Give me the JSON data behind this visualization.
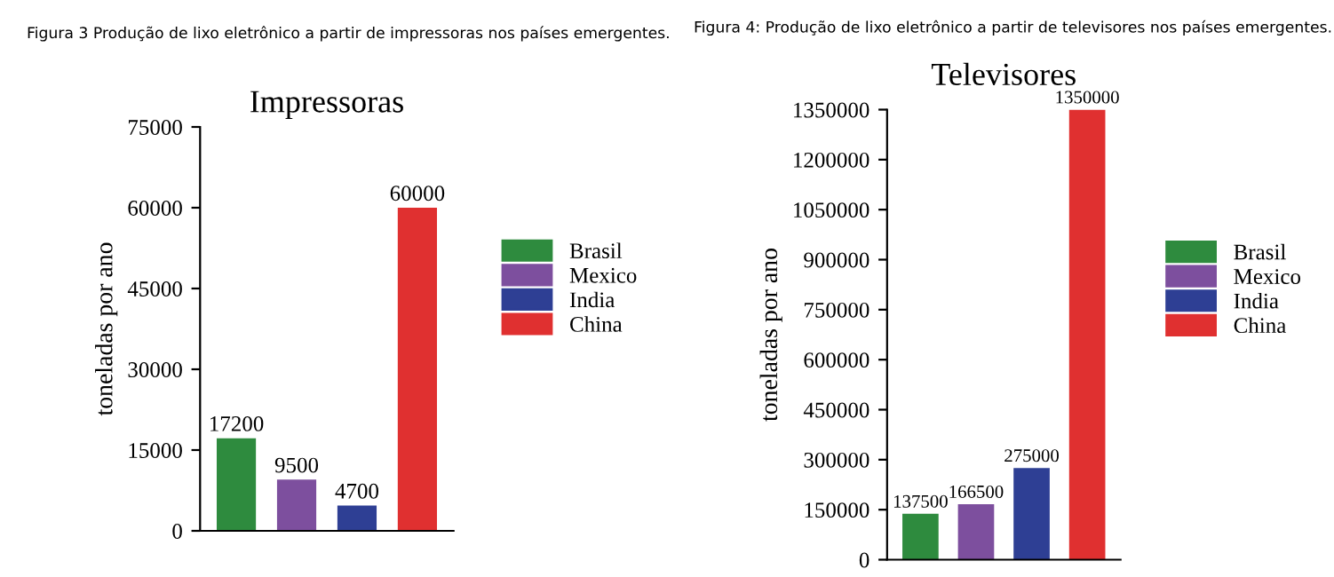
{
  "chart_data": [
    {
      "type": "bar",
      "annotations": [
        "Figura 3 Produção de lixo eletrônico a partir de impressoras nos países emergentes."
      ],
      "title": "Impressoras",
      "ylabel": "toneladas por ano",
      "categories": [
        null,
        null,
        null,
        null
      ],
      "series": [
        {
          "name": "Brasil",
          "color": "#2e8b3e",
          "values": [
            17200,
            null,
            null,
            null
          ]
        },
        {
          "name": "Mexico",
          "color": "#7d4f9e",
          "values": [
            null,
            9500,
            null,
            null
          ]
        },
        {
          "name": "India",
          "color": "#2e3f94",
          "values": [
            null,
            null,
            4700,
            null
          ]
        },
        {
          "name": "China",
          "color": "#e03030",
          "values": [
            null,
            null,
            null,
            60000
          ]
        }
      ],
      "ylim": [
        0,
        75000
      ],
      "yticks": [
        0,
        15000,
        30000,
        45000,
        60000,
        75000
      ],
      "data_labels": true,
      "legend": "right",
      "grid": false
    },
    {
      "type": "bar",
      "annotations": [
        "Figura 4: Produção de lixo eletrônico a partir de televisores nos países emergentes."
      ],
      "title": "Televisores",
      "ylabel": "toneladas por ano",
      "categories": [
        null,
        null,
        null,
        null
      ],
      "series": [
        {
          "name": "Brasil",
          "color": "#2e8b3e",
          "values": [
            137500,
            null,
            null,
            null
          ]
        },
        {
          "name": "Mexico",
          "color": "#7d4f9e",
          "values": [
            null,
            166500,
            null,
            null
          ]
        },
        {
          "name": "India",
          "color": "#2e3f94",
          "values": [
            null,
            null,
            275000,
            null
          ]
        },
        {
          "name": "China",
          "color": "#e03030",
          "values": [
            null,
            null,
            null,
            1350000
          ]
        }
      ],
      "ylim": [
        0,
        1350000
      ],
      "yticks": [
        0,
        150000,
        300000,
        450000,
        600000,
        750000,
        900000,
        1050000,
        1200000,
        1350000
      ],
      "data_labels": true,
      "legend": "right",
      "grid": false
    }
  ]
}
